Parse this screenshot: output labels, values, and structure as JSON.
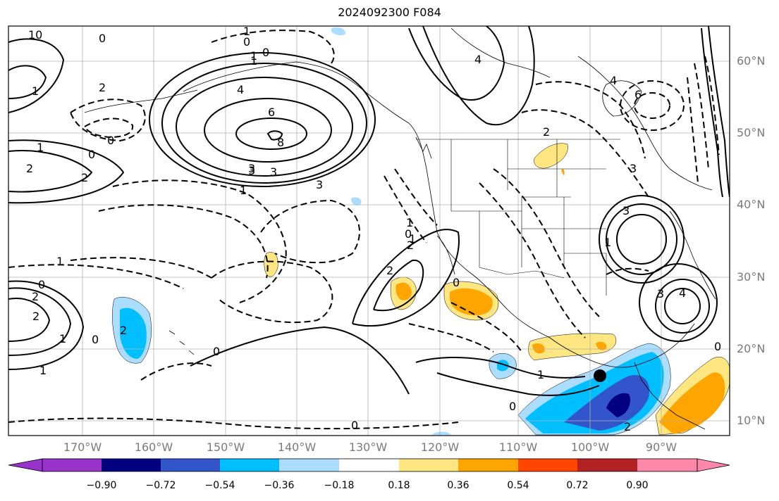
{
  "title": "2024092300 F084",
  "lat_labels": [
    "60°N",
    "50°N",
    "40°N",
    "30°N",
    "20°N",
    "10°N"
  ],
  "lon_labels": [
    "170°W",
    "160°W",
    "150°W",
    "140°W",
    "130°W",
    "120°W",
    "110°W",
    "100°W",
    "90°W"
  ],
  "colorbar": {
    "colors": [
      "#9933cc",
      "#000080",
      "#3355cc",
      "#00bfff",
      "#aaddff",
      "#ffffff",
      "#ffe680",
      "#ffa500",
      "#ff4500",
      "#b22222",
      "#ff88aa"
    ],
    "tick_labels": [
      "−0.90",
      "−0.72",
      "−0.54",
      "−0.36",
      "−0.18",
      "0.18",
      "0.36",
      "0.54",
      "0.72",
      "0.90"
    ]
  },
  "contour_labels": [
    "10",
    "0",
    "1",
    "0",
    "1",
    "0",
    "2",
    "1",
    "0",
    "4",
    "6",
    "8",
    "3",
    "3",
    "1",
    "3",
    "1",
    "0",
    "2",
    "2",
    "1",
    "0",
    "2",
    "2",
    "1",
    "1",
    "2",
    "0",
    "3",
    "0",
    "2",
    "0",
    "2",
    "1",
    "4",
    "1",
    "0",
    "1",
    "1",
    "0",
    "0",
    "4",
    "6",
    "3",
    "3",
    "2",
    "3",
    "4",
    "1",
    "0",
    "2"
  ],
  "marker": "storm-center"
}
